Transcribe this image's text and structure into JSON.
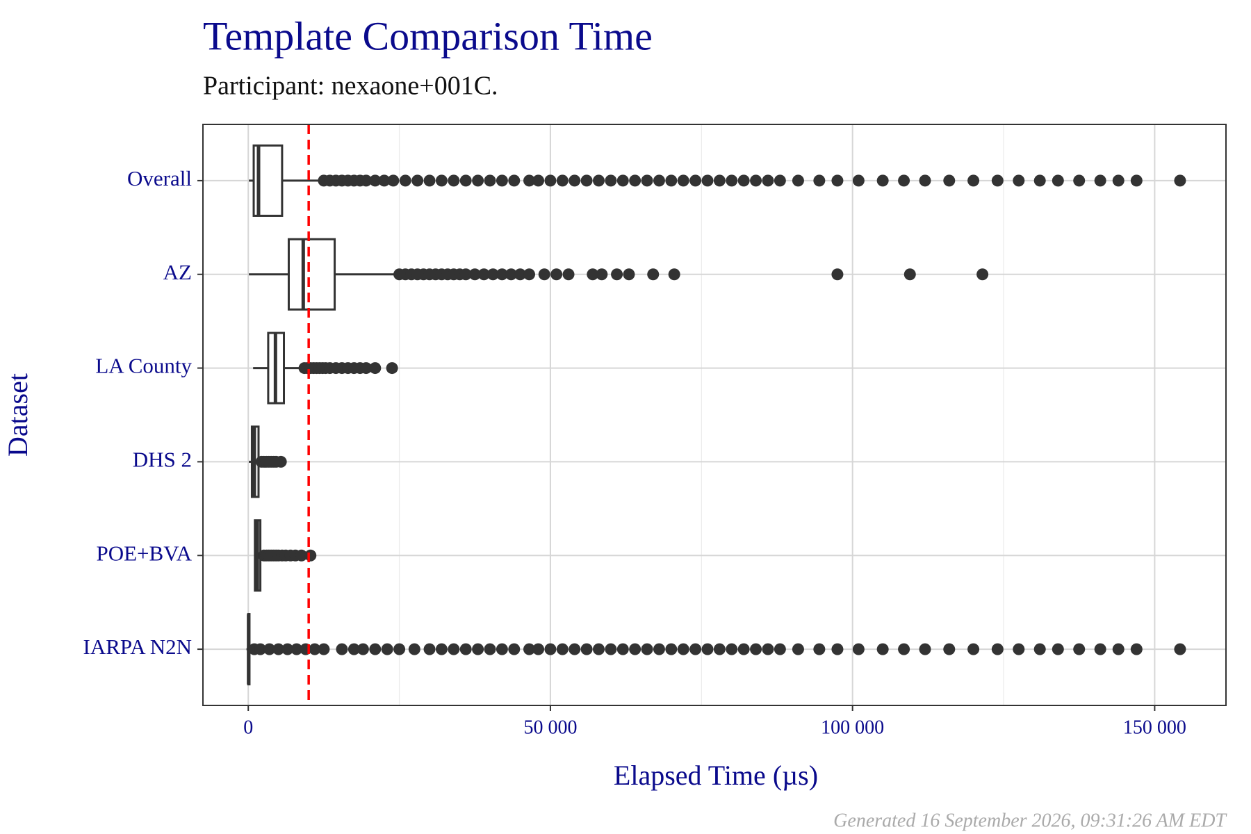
{
  "chart_data": {
    "type": "boxplot",
    "title": "Template Comparison Time",
    "subtitle": "Participant: nexaone+001C.",
    "x_label": "Elapsed Time (µs)",
    "y_label": "Dataset",
    "footer": "Generated 16 September 2026, 09:31:26 AM EDT",
    "categories": [
      "Overall",
      "AZ",
      "LA County",
      "DHS 2",
      "POE+BVA",
      "IARPA N2N"
    ],
    "boxes": [
      {
        "whislo": 100,
        "q1": 900,
        "med": 1700,
        "q3": 5600,
        "whishi": 11800,
        "outliers": [
          12500,
          13500,
          14500,
          15500,
          16500,
          17500,
          18500,
          19500,
          21000,
          22500,
          24000,
          26000,
          28000,
          30000,
          32000,
          34000,
          36000,
          38000,
          40000,
          42000,
          44000,
          46500,
          48000,
          50000,
          52000,
          54000,
          56000,
          58000,
          60000,
          62000,
          64000,
          66000,
          68000,
          70000,
          72000,
          74000,
          76000,
          78000,
          80000,
          82000,
          84000,
          86000,
          88000,
          91000,
          94500,
          97500,
          101000,
          105000,
          108500,
          112000,
          116000,
          120000,
          124000,
          127500,
          131000,
          134000,
          137500,
          141000,
          144000,
          147000,
          154200
        ]
      },
      {
        "whislo": 100,
        "q1": 6700,
        "med": 9100,
        "q3": 14300,
        "whishi": 24800,
        "outliers": [
          25000,
          26000,
          27000,
          28000,
          29000,
          30000,
          31000,
          32000,
          33000,
          34000,
          35000,
          36000,
          37500,
          39000,
          40500,
          42000,
          43500,
          45000,
          46500,
          49000,
          51000,
          53000,
          57000,
          58500,
          61000,
          63000,
          67000,
          70500,
          97500,
          109500,
          121500
        ]
      },
      {
        "whislo": 800,
        "q1": 3300,
        "med": 4500,
        "q3": 5900,
        "whishi": 9100,
        "outliers": [
          9300,
          9800,
          10300,
          10800,
          11300,
          11800,
          12300,
          12800,
          13500,
          14500,
          15500,
          16500,
          17500,
          18500,
          19500,
          21000,
          23800
        ]
      },
      {
        "whislo": 100,
        "q1": 600,
        "med": 1000,
        "q3": 1700,
        "whishi": 1900,
        "outliers": [
          2200,
          2600,
          3000,
          3400,
          3800,
          4200,
          4600,
          5400
        ]
      },
      {
        "whislo": 1000,
        "q1": 1100,
        "med": 1500,
        "q3": 2000,
        "whishi": 2500,
        "outliers": [
          2600,
          3000,
          3400,
          3800,
          4200,
          4600,
          5000,
          5600,
          6200,
          7000,
          7800,
          8800,
          10300
        ]
      },
      {
        "whislo": -300,
        "q1": 0,
        "med": 50,
        "q3": 200,
        "whishi": 500,
        "outliers": [
          1000,
          2000,
          3500,
          5000,
          6500,
          8000,
          9500,
          11000,
          12500,
          15500,
          17500,
          19000,
          21000,
          23000,
          25000,
          27500,
          30000,
          32000,
          34000,
          36000,
          38000,
          40000,
          42000,
          44000,
          46500,
          48000,
          50000,
          52000,
          54000,
          56000,
          58000,
          60000,
          62000,
          64000,
          66000,
          68000,
          70000,
          72000,
          74000,
          76000,
          78000,
          80000,
          82000,
          84000,
          86000,
          88000,
          91000,
          94500,
          97500,
          101000,
          105000,
          108500,
          112000,
          116000,
          120000,
          124000,
          127500,
          131000,
          134000,
          137500,
          141000,
          144000,
          147000,
          154200
        ]
      }
    ],
    "xlim": [
      -7500,
      161800
    ],
    "xticks": [
      0,
      {
        "value": 50000,
        "label": "50 000"
      },
      {
        "value": 100000,
        "label": "100 000"
      },
      {
        "value": 150000,
        "label": "150 000"
      }
    ],
    "x_minor_grid": [
      25000,
      75000,
      125000
    ],
    "reference_line": {
      "value": 10000,
      "color": "#ff0000"
    },
    "box_color": "#333333",
    "grid": true
  }
}
